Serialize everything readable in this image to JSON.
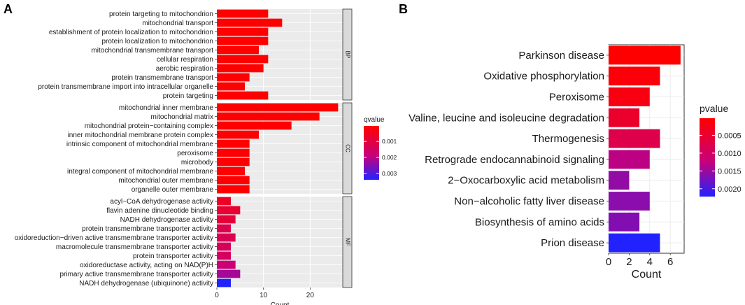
{
  "panel_a_letter": "A",
  "panel_b_letter": "B",
  "chart_data": [
    {
      "type": "bar",
      "orientation": "horizontal",
      "xlabel": "Count",
      "xlim": [
        0,
        27
      ],
      "xticks": [
        0,
        10,
        20
      ],
      "legend": {
        "title": "qvalue",
        "ticks": [
          "0.001",
          "0.002",
          "0.003"
        ],
        "tick_values": [
          0.001,
          0.002,
          0.003
        ],
        "range": [
          3e-05,
          0.0034
        ],
        "colors": [
          "#ff0000",
          "#2222ff"
        ],
        "placement": "right"
      },
      "facets": [
        {
          "name": "BP",
          "categories": [
            "protein targeting to mitochondrion",
            "mitochondrial transport",
            "establishment of protein localization to mitochondrion",
            "protein localization to mitochondrion",
            "mitochondrial transmembrane transport",
            "cellular respiration",
            "aerobic respiration",
            "protein transmembrane transport",
            "protein transmembrane import into intracellular organelle",
            "protein targeting"
          ],
          "values": [
            11,
            14,
            11,
            11,
            9,
            11,
            10,
            7,
            6,
            11
          ],
          "color_values": [
            4e-05,
            4e-05,
            4e-05,
            4e-05,
            4e-05,
            4e-05,
            4e-05,
            5e-05,
            5e-05,
            4e-05
          ]
        },
        {
          "name": "CC",
          "categories": [
            "mitochondrial inner membrane",
            "mitochondrial matrix",
            "mitochondrial protein−containing complex",
            "inner mitochondrial membrane protein complex",
            "intrinsic component of mitochondrial membrane",
            "peroxisome",
            "microbody",
            "integral component of mitochondrial membrane",
            "mitochondrial outer membrane",
            "organelle outer membrane"
          ],
          "values": [
            26,
            22,
            16,
            9,
            7,
            7,
            7,
            6,
            7,
            7
          ],
          "color_values": [
            3e-05,
            3e-05,
            3e-05,
            5e-05,
            6e-05,
            6e-05,
            6e-05,
            6e-05,
            6e-05,
            6e-05
          ]
        },
        {
          "name": "MF",
          "categories": [
            "acyl−CoA dehydrogenase activity",
            "flavin adenine dinucleotide binding",
            "NADH dehydrogenase activity",
            "protein transmembrane transporter activity",
            "oxidoreduction−driven active transmembrane transporter activity",
            "macromolecule transmembrane transporter activity",
            "protein transporter activity",
            "oxidoreductase activity, acting on NAD(P)H",
            "primary active transmembrane transporter activity",
            "NADH dehydrogenase (ubiquinone) activity"
          ],
          "values": [
            3,
            5,
            4,
            3,
            4,
            3,
            3,
            4,
            5,
            3
          ],
          "color_values": [
            0.0006,
            0.0008,
            0.0009,
            0.0012,
            0.0013,
            0.0014,
            0.0015,
            0.0018,
            0.0022,
            0.0034
          ]
        }
      ]
    },
    {
      "type": "bar",
      "orientation": "horizontal",
      "xlabel": "Count",
      "xlim": [
        0,
        7.35
      ],
      "xticks": [
        0,
        2,
        4,
        6
      ],
      "legend": {
        "title": "pvalue",
        "ticks": [
          "0.0005",
          "0.0010",
          "0.0015",
          "0.0020"
        ],
        "tick_values": [
          0.0005,
          0.001,
          0.0015,
          0.002
        ],
        "range": [
          2e-05,
          0.00222
        ],
        "colors": [
          "#ff0000",
          "#2222ff"
        ],
        "placement": "right"
      },
      "categories": [
        "Parkinson disease",
        "Oxidative phosphorylation",
        "Peroxisome",
        "Valine, leucine and isoleucine degradation",
        "Thermogenesis",
        "Retrograde endocannabinoid signaling",
        "2−Oxocarboxylic acid metabolism",
        "Non−alcoholic fatty liver disease",
        "Biosynthesis of amino acids",
        "Prion disease"
      ],
      "values": [
        7,
        5,
        4,
        3,
        5,
        4,
        2,
        4,
        3,
        5
      ],
      "color_values": [
        2e-05,
        0.0001,
        0.00018,
        0.00045,
        0.00075,
        0.0013,
        0.00155,
        0.0016,
        0.00165,
        0.00222
      ]
    }
  ]
}
